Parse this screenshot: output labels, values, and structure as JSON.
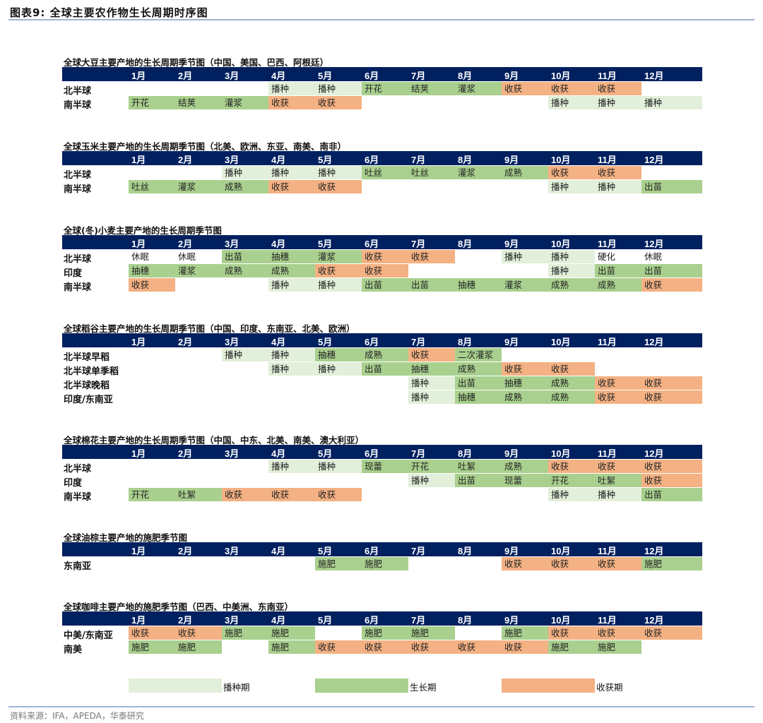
{
  "figure_title": "图表9:   全球主要农作物生长周期时序图",
  "colors": {
    "header": "#002060",
    "sowing": "#e2efda",
    "growing": "#a9d08e",
    "harvest": "#f4b183"
  },
  "months": [
    "1月",
    "2月",
    "3月",
    "4月",
    "5月",
    "6月",
    "7月",
    "8月",
    "9月",
    "10月",
    "11月",
    "12月"
  ],
  "sections": [
    {
      "title": "全球大豆主要产地的生长周期季节图（中国、美国、巴西、阿根廷）",
      "rows": [
        {
          "label": "北半球",
          "cells": [
            [
              "",
              ""
            ],
            [
              "",
              ""
            ],
            [
              "",
              ""
            ],
            [
              "播种",
              "s"
            ],
            [
              "播种",
              "s"
            ],
            [
              "开花",
              "g"
            ],
            [
              "结荚",
              "g"
            ],
            [
              "灌浆",
              "g"
            ],
            [
              "收获",
              "h"
            ],
            [
              "收获",
              "h"
            ],
            [
              "收获",
              "h"
            ],
            [
              "",
              ""
            ]
          ]
        },
        {
          "label": "南半球",
          "cells": [
            [
              "开花",
              "g"
            ],
            [
              "结荚",
              "g"
            ],
            [
              "灌浆",
              "g"
            ],
            [
              "收获",
              "h"
            ],
            [
              "收获",
              "h"
            ],
            [
              "",
              ""
            ],
            [
              "",
              ""
            ],
            [
              "",
              ""
            ],
            [
              "",
              ""
            ],
            [
              "播种",
              "s"
            ],
            [
              "播种",
              "s"
            ],
            [
              "播种",
              "s"
            ]
          ]
        }
      ]
    },
    {
      "title": "全球玉米主要产地的生长周期季节图（北美、欧洲、东亚、南美、南非）",
      "rows": [
        {
          "label": "北半球",
          "cells": [
            [
              "",
              ""
            ],
            [
              "",
              ""
            ],
            [
              "播种",
              "s"
            ],
            [
              "播种",
              "s"
            ],
            [
              "播种",
              "s"
            ],
            [
              "吐丝",
              "g"
            ],
            [
              "吐丝",
              "g"
            ],
            [
              "灌浆",
              "g"
            ],
            [
              "成熟",
              "g"
            ],
            [
              "收获",
              "h"
            ],
            [
              "收获",
              "h"
            ],
            [
              "",
              ""
            ]
          ]
        },
        {
          "label": "南半球",
          "cells": [
            [
              "吐丝",
              "g"
            ],
            [
              "灌浆",
              "g"
            ],
            [
              "成熟",
              "g"
            ],
            [
              "收获",
              "h"
            ],
            [
              "收获",
              "h"
            ],
            [
              "",
              ""
            ],
            [
              "",
              ""
            ],
            [
              "",
              ""
            ],
            [
              "",
              ""
            ],
            [
              "播种",
              "s"
            ],
            [
              "播种",
              "s"
            ],
            [
              "出苗",
              "g"
            ]
          ]
        }
      ]
    },
    {
      "title": "全球(冬)小麦主要产地的生长周期季节图",
      "rows": [
        {
          "label": "北半球",
          "cells": [
            [
              "休眠",
              "w"
            ],
            [
              "休眠",
              "w"
            ],
            [
              "出苗",
              "g"
            ],
            [
              "抽穗",
              "g"
            ],
            [
              "灌浆",
              "g"
            ],
            [
              "收获",
              "h"
            ],
            [
              "收获",
              "h"
            ],
            [
              "",
              ""
            ],
            [
              "播种",
              "s"
            ],
            [
              "播种",
              "s"
            ],
            [
              "硬化",
              "w"
            ],
            [
              "休眠",
              "w"
            ]
          ]
        },
        {
          "label": "印度",
          "cells": [
            [
              "抽穗",
              "g"
            ],
            [
              "灌浆",
              "g"
            ],
            [
              "成熟",
              "g"
            ],
            [
              "成熟",
              "g"
            ],
            [
              "收获",
              "h"
            ],
            [
              "收获",
              "h"
            ],
            [
              "",
              ""
            ],
            [
              "",
              ""
            ],
            [
              "",
              ""
            ],
            [
              "播种",
              "s"
            ],
            [
              "出苗",
              "g"
            ],
            [
              "出苗",
              "g"
            ]
          ]
        },
        {
          "label": "南半球",
          "cells": [
            [
              "收获",
              "h"
            ],
            [
              "",
              ""
            ],
            [
              "",
              ""
            ],
            [
              "播种",
              "s"
            ],
            [
              "播种",
              "s"
            ],
            [
              "出苗",
              "g"
            ],
            [
              "出苗",
              "g"
            ],
            [
              "抽穗",
              "g"
            ],
            [
              "灌浆",
              "g"
            ],
            [
              "成熟",
              "g"
            ],
            [
              "成熟",
              "g"
            ],
            [
              "收获",
              "h"
            ]
          ]
        }
      ]
    },
    {
      "title": "全球稻谷主要产地的生长周期季节图（中国、印度、东南亚、北美、欧洲）",
      "rows": [
        {
          "label": "北半球早稻",
          "cells": [
            [
              "",
              ""
            ],
            [
              "",
              ""
            ],
            [
              "播种",
              "s"
            ],
            [
              "播种",
              "s"
            ],
            [
              "抽穗",
              "g"
            ],
            [
              "成熟",
              "g"
            ],
            [
              "收获",
              "h"
            ],
            [
              "二次灌浆",
              "g"
            ],
            [
              "",
              ""
            ],
            [
              "",
              ""
            ],
            [
              "",
              ""
            ],
            [
              "",
              ""
            ]
          ]
        },
        {
          "label": "北半球单季稻",
          "cells": [
            [
              "",
              ""
            ],
            [
              "",
              ""
            ],
            [
              "",
              ""
            ],
            [
              "播种",
              "s"
            ],
            [
              "播种",
              "s"
            ],
            [
              "出苗",
              "g"
            ],
            [
              "抽穗",
              "g"
            ],
            [
              "成熟",
              "g"
            ],
            [
              "收获",
              "h"
            ],
            [
              "收获",
              "h"
            ],
            [
              "",
              ""
            ],
            [
              "",
              ""
            ]
          ]
        },
        {
          "label": "北半球晚稻",
          "cells": [
            [
              "",
              ""
            ],
            [
              "",
              ""
            ],
            [
              "",
              ""
            ],
            [
              "",
              ""
            ],
            [
              "",
              ""
            ],
            [
              "",
              ""
            ],
            [
              "播种",
              "s"
            ],
            [
              "出苗",
              "g"
            ],
            [
              "抽穗",
              "g"
            ],
            [
              "成熟",
              "g"
            ],
            [
              "收获",
              "h"
            ],
            [
              "收获",
              "h"
            ]
          ]
        },
        {
          "label": "印度/东南亚",
          "cells": [
            [
              "",
              ""
            ],
            [
              "",
              ""
            ],
            [
              "",
              ""
            ],
            [
              "",
              ""
            ],
            [
              "",
              ""
            ],
            [
              "",
              ""
            ],
            [
              "播种",
              "s"
            ],
            [
              "抽穗",
              "g"
            ],
            [
              "成熟",
              "g"
            ],
            [
              "成熟",
              "g"
            ],
            [
              "收获",
              "h"
            ],
            [
              "收获",
              "h"
            ]
          ]
        }
      ]
    },
    {
      "title": "全球棉花主要产地的生长周期季节图（中国、中东、北美、南美、澳大利亚）",
      "rows": [
        {
          "label": "北半球",
          "cells": [
            [
              "",
              ""
            ],
            [
              "",
              ""
            ],
            [
              "",
              ""
            ],
            [
              "播种",
              "s"
            ],
            [
              "播种",
              "s"
            ],
            [
              "现蕾",
              "g"
            ],
            [
              "开花",
              "g"
            ],
            [
              "吐絮",
              "g"
            ],
            [
              "成熟",
              "g"
            ],
            [
              "收获",
              "h"
            ],
            [
              "收获",
              "h"
            ],
            [
              "收获",
              "h"
            ]
          ]
        },
        {
          "label": "印度",
          "cells": [
            [
              "",
              ""
            ],
            [
              "",
              ""
            ],
            [
              "",
              ""
            ],
            [
              "",
              ""
            ],
            [
              "",
              ""
            ],
            [
              "",
              ""
            ],
            [
              "播种",
              "s"
            ],
            [
              "出苗",
              "g"
            ],
            [
              "现蕾",
              "g"
            ],
            [
              "开花",
              "g"
            ],
            [
              "吐絮",
              "g"
            ],
            [
              "收获",
              "h"
            ]
          ]
        },
        {
          "label": "南半球",
          "cells": [
            [
              "开花",
              "g"
            ],
            [
              "吐絮",
              "g"
            ],
            [
              "收获",
              "h"
            ],
            [
              "收获",
              "h"
            ],
            [
              "收获",
              "h"
            ],
            [
              "",
              ""
            ],
            [
              "",
              ""
            ],
            [
              "",
              ""
            ],
            [
              "",
              ""
            ],
            [
              "播种",
              "s"
            ],
            [
              "播种",
              "s"
            ],
            [
              "出苗",
              "g"
            ]
          ]
        }
      ]
    },
    {
      "title": "全球油棕主要产地的施肥季节图",
      "rows": [
        {
          "label": "东南亚",
          "cells": [
            [
              "",
              ""
            ],
            [
              "",
              ""
            ],
            [
              "",
              ""
            ],
            [
              "",
              ""
            ],
            [
              "施肥",
              "g"
            ],
            [
              "施肥",
              "g"
            ],
            [
              "",
              ""
            ],
            [
              "",
              ""
            ],
            [
              "收获",
              "h"
            ],
            [
              "收获",
              "h"
            ],
            [
              "收获",
              "h"
            ],
            [
              "施肥",
              "g"
            ]
          ]
        }
      ]
    },
    {
      "title": "全球咖啡主要产地的施肥季节图（巴西、中美洲、东南亚）",
      "rows": [
        {
          "label": "中美/东南亚",
          "cells": [
            [
              "收获",
              "h"
            ],
            [
              "收获",
              "h"
            ],
            [
              "施肥",
              "g"
            ],
            [
              "施肥",
              "g"
            ],
            [
              "",
              ""
            ],
            [
              "施肥",
              "g"
            ],
            [
              "施肥",
              "g"
            ],
            [
              "",
              ""
            ],
            [
              "施肥",
              "g"
            ],
            [
              "收获",
              "h"
            ],
            [
              "收获",
              "h"
            ],
            [
              "收获",
              "h"
            ]
          ]
        },
        {
          "label": "南美",
          "cells": [
            [
              "施肥",
              "g"
            ],
            [
              "施肥",
              "g"
            ],
            [
              "",
              ""
            ],
            [
              "施肥",
              "g"
            ],
            [
              "收获",
              "h"
            ],
            [
              "收获",
              "h"
            ],
            [
              "收获",
              "h"
            ],
            [
              "收获",
              "h"
            ],
            [
              "收获",
              "h"
            ],
            [
              "施肥",
              "g"
            ],
            [
              "施肥",
              "g"
            ],
            [
              "",
              ""
            ]
          ]
        }
      ]
    }
  ],
  "legend": [
    {
      "label": "播种期",
      "type": "s"
    },
    {
      "label": "生长期",
      "type": "g"
    },
    {
      "label": "收获期",
      "type": "h"
    }
  ],
  "source": "资料来源：IFA，APEDA，华泰研究"
}
